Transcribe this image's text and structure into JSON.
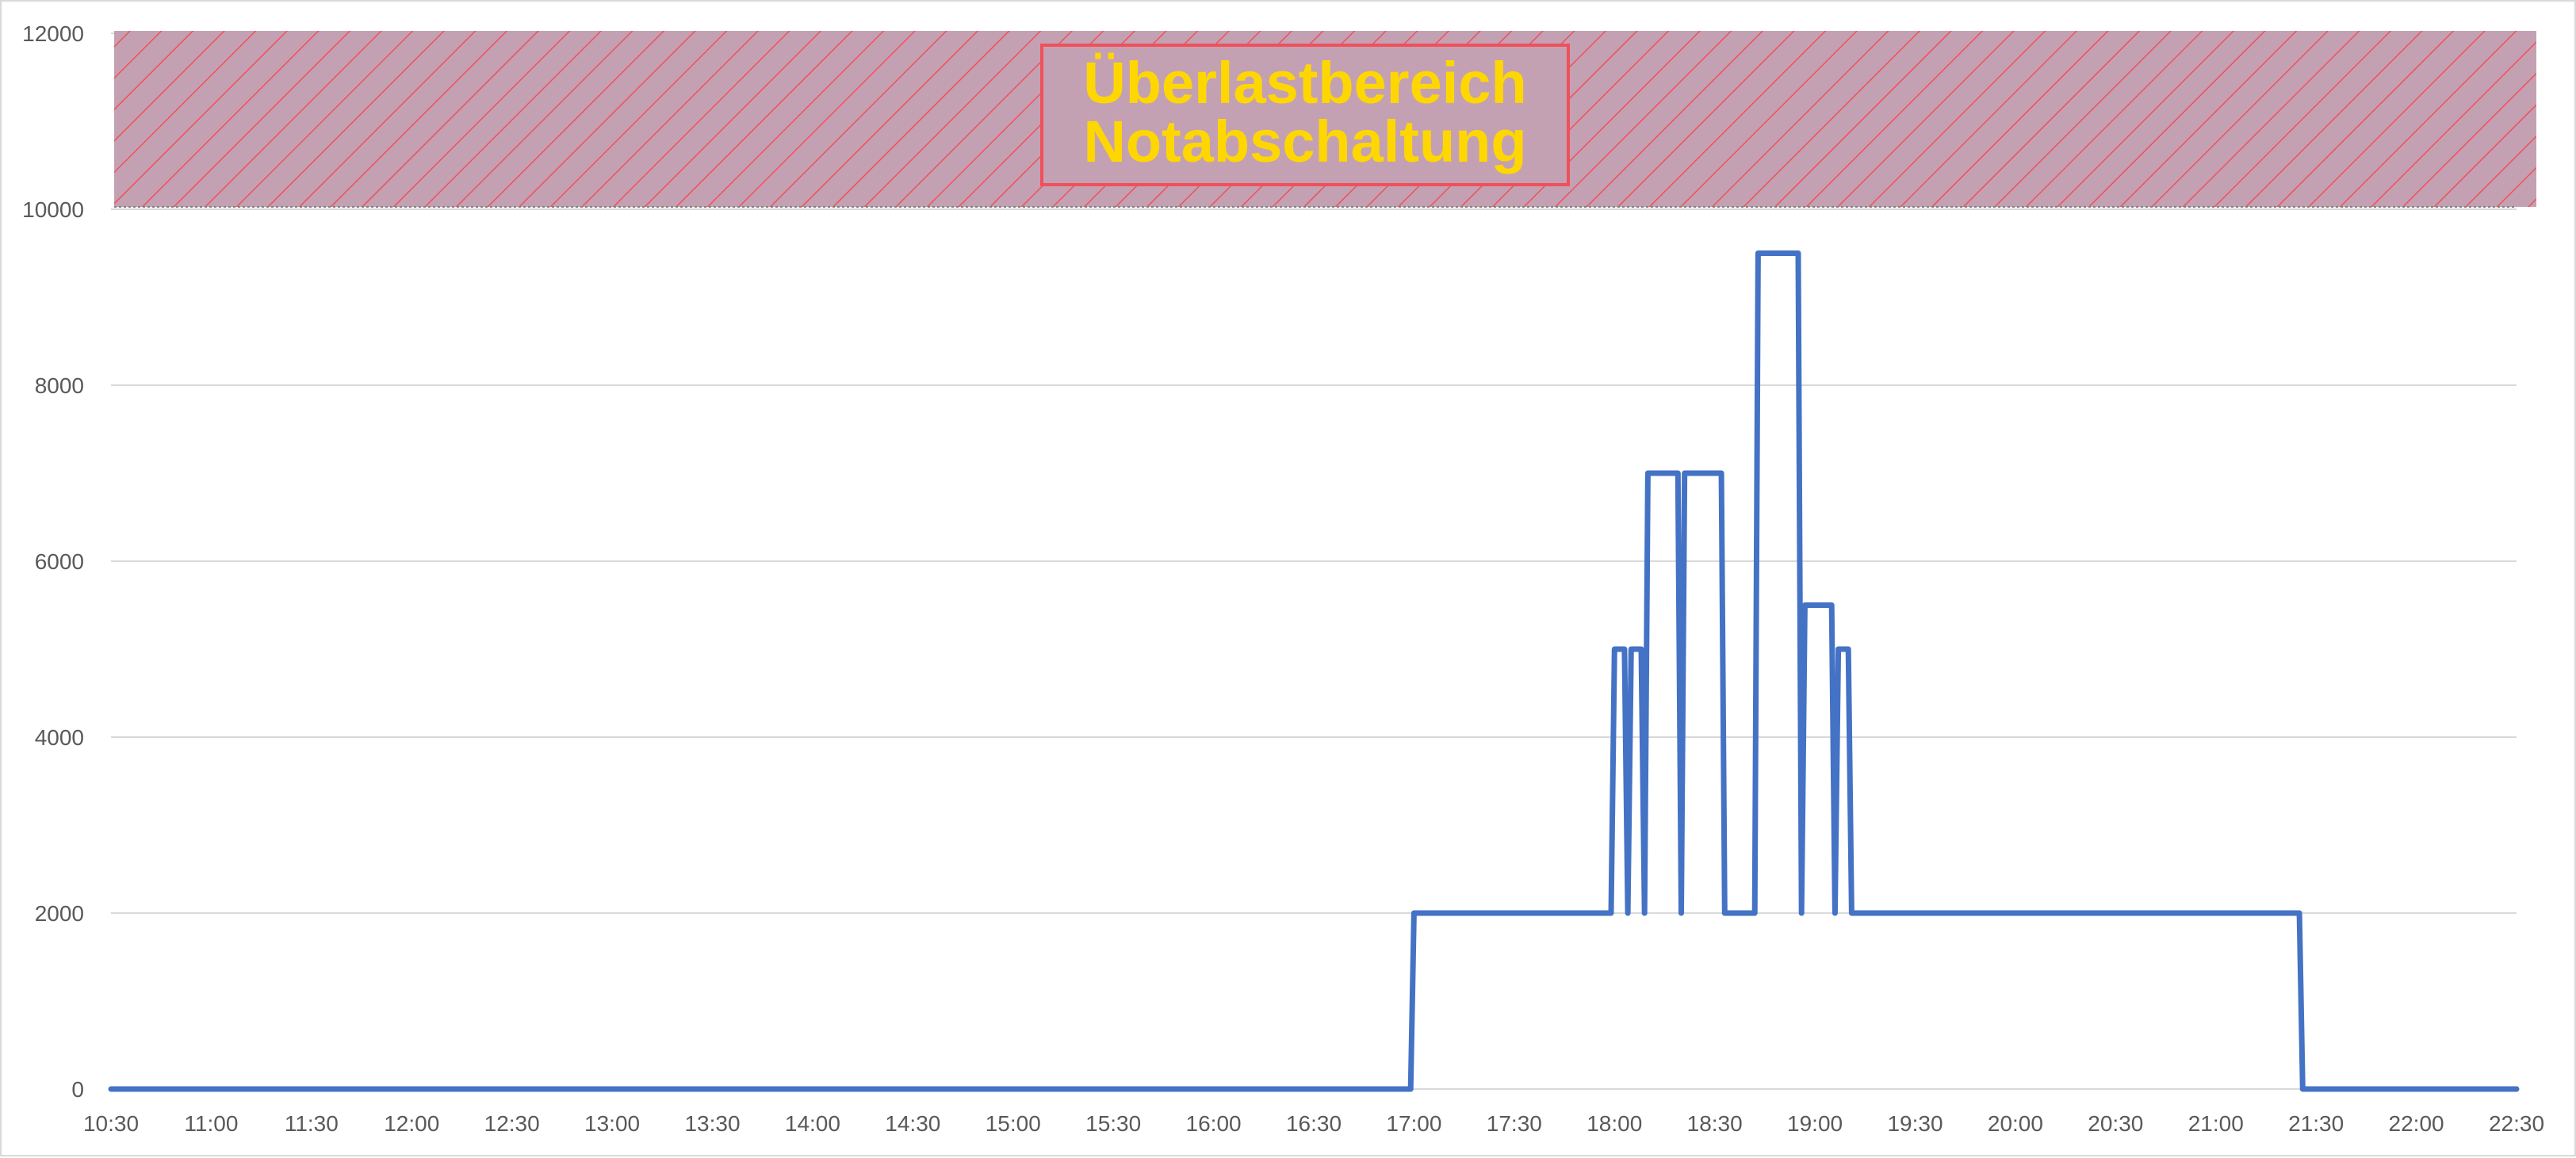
{
  "chart_data": {
    "type": "line",
    "title": "",
    "xlabel": "",
    "ylabel": "",
    "ylim": [
      0,
      12000
    ],
    "y_ticks": [
      "0",
      "2000",
      "4000",
      "6000",
      "8000",
      "10000",
      "12000"
    ],
    "x_ticks": [
      "10:30",
      "11:00",
      "11:30",
      "12:00",
      "12:30",
      "13:00",
      "13:30",
      "14:00",
      "14:30",
      "15:00",
      "15:30",
      "16:00",
      "16:30",
      "17:00",
      "17:30",
      "18:00",
      "18:30",
      "19:00",
      "19:30",
      "20:00",
      "20:30",
      "21:00",
      "21:30",
      "22:00",
      "22:30"
    ],
    "xlim": [
      "10:30",
      "22:30"
    ],
    "grid": true,
    "legend": "none",
    "overload_zone": {
      "from": 10000,
      "to": 12000,
      "label_line1": "Überlastbereich",
      "label_line2": "Notabschaltung",
      "fill_color": "#c4a1b2",
      "hatch_color": "#f0505a",
      "label_color": "#ffd700"
    },
    "series": [
      {
        "color": "#4472c4",
        "points": [
          [
            "10:30",
            0
          ],
          [
            "16:59",
            0
          ],
          [
            "17:00",
            2000
          ],
          [
            "17:59",
            2000
          ],
          [
            "18:00",
            5000
          ],
          [
            "18:03",
            5000
          ],
          [
            "18:04",
            2000
          ],
          [
            "18:05",
            5000
          ],
          [
            "18:08",
            5000
          ],
          [
            "18:09",
            2000
          ],
          [
            "18:10",
            7000
          ],
          [
            "18:19",
            7000
          ],
          [
            "18:20",
            2000
          ],
          [
            "18:21",
            7000
          ],
          [
            "18:32",
            7000
          ],
          [
            "18:33",
            2000
          ],
          [
            "18:42",
            2000
          ],
          [
            "18:43",
            9500
          ],
          [
            "18:55",
            9500
          ],
          [
            "18:56",
            2000
          ],
          [
            "18:57",
            5500
          ],
          [
            "19:05",
            5500
          ],
          [
            "19:06",
            2000
          ],
          [
            "19:07",
            5000
          ],
          [
            "19:10",
            5000
          ],
          [
            "19:11",
            2000
          ],
          [
            "21:25",
            2000
          ],
          [
            "21:26",
            0
          ],
          [
            "22:30",
            0
          ]
        ]
      }
    ]
  }
}
